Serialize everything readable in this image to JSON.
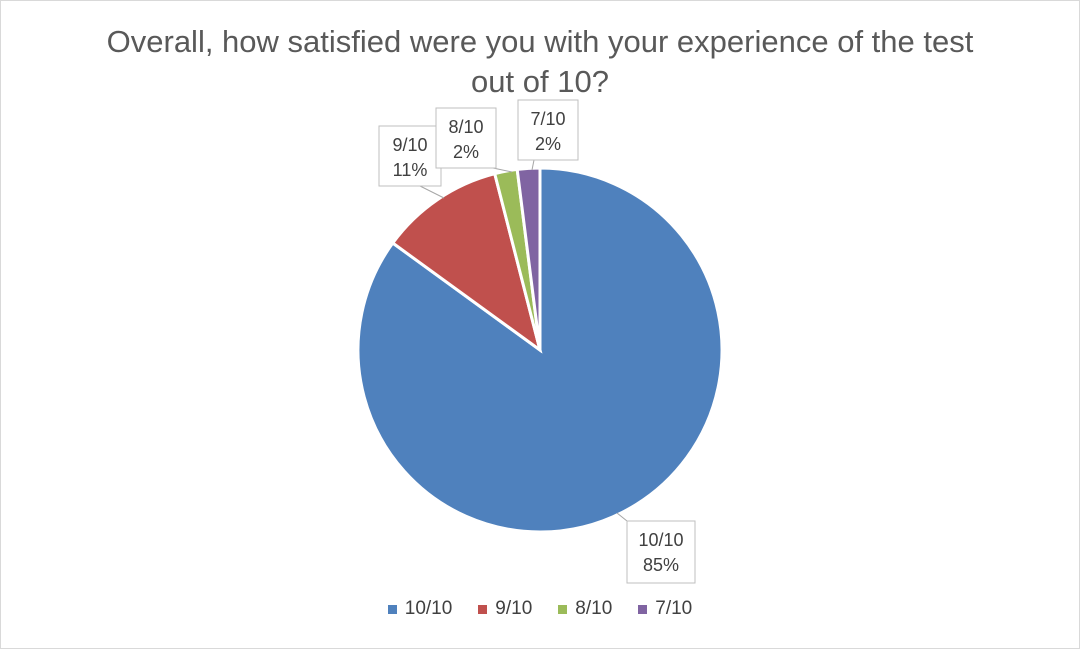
{
  "chart_data": {
    "type": "pie",
    "title": "Overall, how satisfied were you with your experience of the test out of 10?",
    "categories": [
      "10/10",
      "9/10",
      "8/10",
      "7/10"
    ],
    "values": [
      85,
      11,
      2,
      2
    ],
    "value_labels": [
      "85%",
      "11%",
      "2%",
      "2%"
    ],
    "colors": [
      "#4f81bd",
      "#c0504d",
      "#9bbb59",
      "#8064a2"
    ],
    "legend_position": "bottom",
    "data_labels": "callout with category name and percentage"
  }
}
